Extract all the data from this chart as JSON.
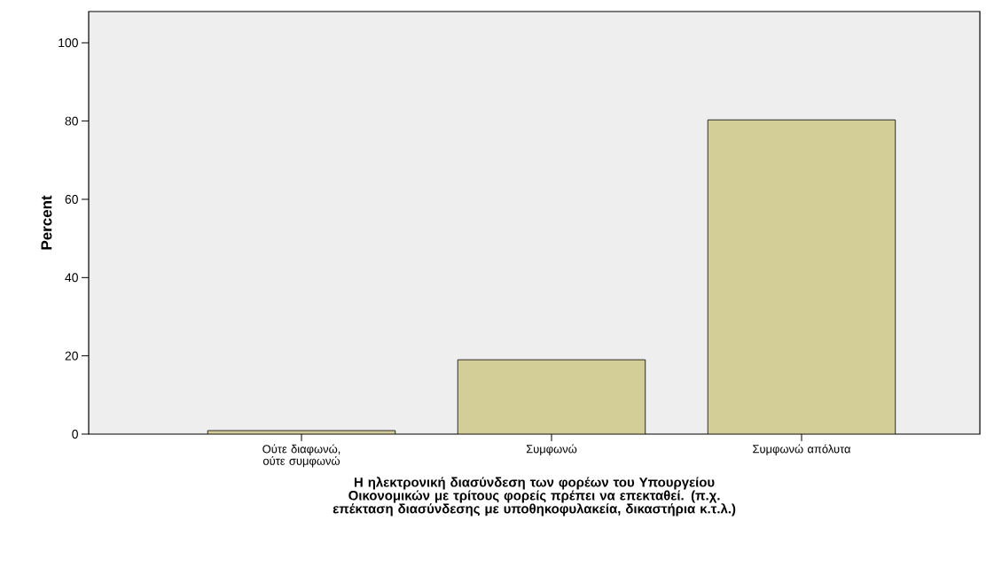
{
  "chart_data": {
    "type": "bar",
    "xlabel": "Η ηλεκτρονική διασύνδεση των φορέων του Υπουργείου Οικονομικών με τρίτους φορείς πρέπει να επεκταθεί. (π.χ. επέκταση διασύνδεσης με υποθηκοφυλακεία, δικαστήρια κ.τ.λ.)",
    "ylabel": "Percent",
    "categories": [
      "Ούτε διαφωνώ, ούτε συμφωνώ",
      "Συμφωνώ",
      "Συμφωνώ απόλυτα"
    ],
    "values": [
      0.9,
      19.0,
      80.3
    ],
    "color": "#d3ce97",
    "ylim": [
      0,
      108
    ],
    "yticks": [
      0,
      20,
      40,
      60,
      80,
      100
    ],
    "grid": false
  }
}
